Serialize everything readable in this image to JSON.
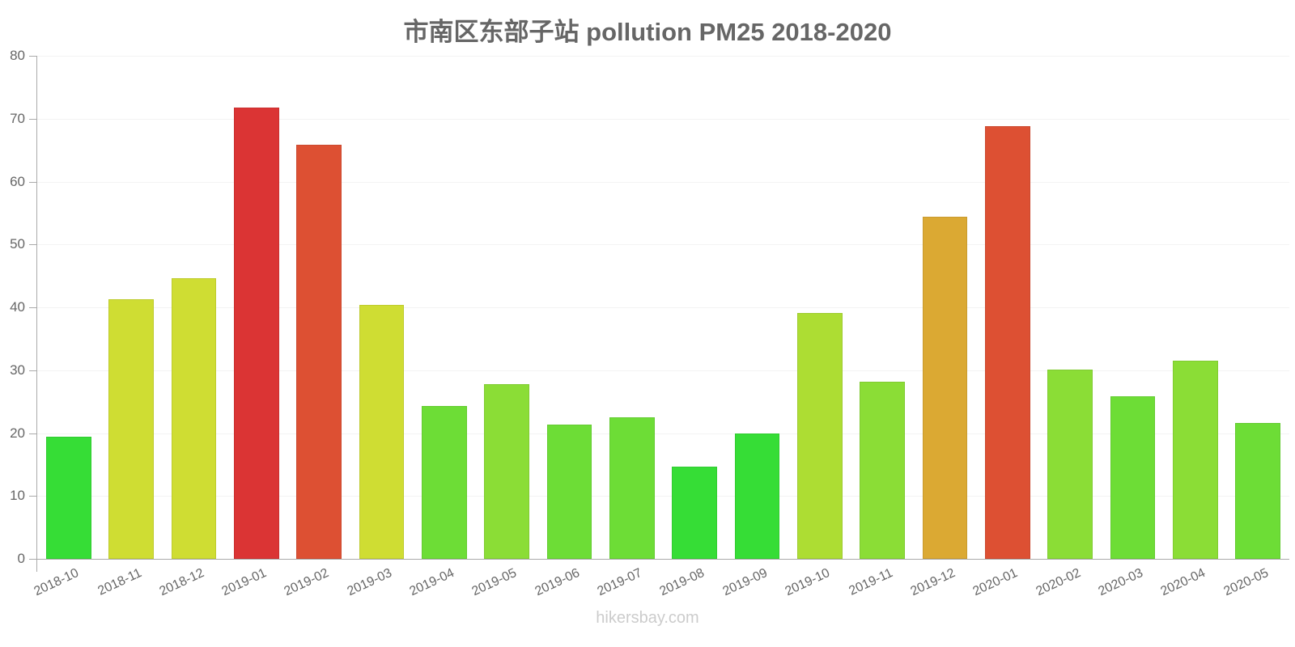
{
  "chart_data": {
    "type": "bar",
    "title": "市南区东部子站 pollution PM25 2018-2020",
    "xlabel": "",
    "ylabel": "",
    "ylim": [
      0,
      80
    ],
    "yticks": [
      0,
      10,
      20,
      30,
      40,
      50,
      60,
      70,
      80
    ],
    "grid": true,
    "legend": null,
    "categories": [
      "2018-10",
      "2018-11",
      "2018-12",
      "2019-01",
      "2019-02",
      "2019-03",
      "2019-04",
      "2019-05",
      "2019-06",
      "2019-07",
      "2019-08",
      "2019-09",
      "2019-10",
      "2019-11",
      "2019-12",
      "2020-01",
      "2020-02",
      "2020-03",
      "2020-04",
      "2020-05"
    ],
    "values": [
      19.4,
      41.3,
      44.6,
      71.8,
      65.9,
      40.4,
      24.3,
      27.8,
      21.4,
      22.5,
      14.7,
      19.9,
      39.1,
      28.2,
      54.4,
      68.8,
      30.1,
      25.9,
      31.5,
      21.6
    ],
    "colors": [
      "#36dd36",
      "#cfdd33",
      "#cfdd33",
      "#db3434",
      "#dd5033",
      "#cfdd33",
      "#6ddd36",
      "#8bdd36",
      "#6ddd36",
      "#6ddd36",
      "#36dd36",
      "#36dd36",
      "#addd33",
      "#8bdd36",
      "#dba933",
      "#dd5033",
      "#8bdd36",
      "#6ddd36",
      "#8bdd36",
      "#6ddd36"
    ]
  },
  "watermark": "hikersbay.com"
}
